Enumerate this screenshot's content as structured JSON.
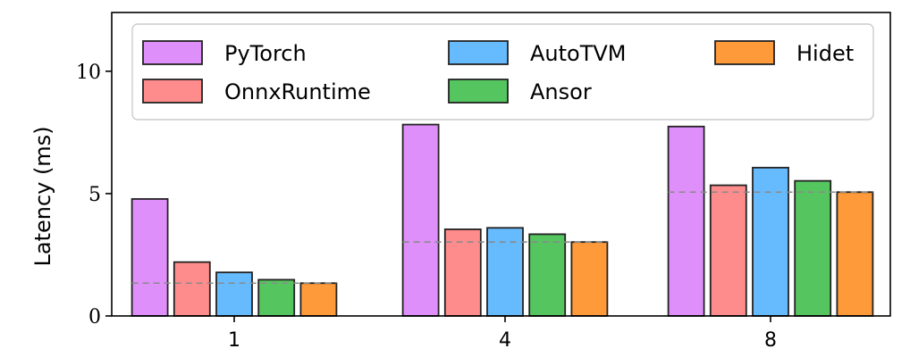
{
  "chart_data": {
    "type": "bar",
    "title": "",
    "xlabel": "",
    "ylabel": "Latency (ms)",
    "ylim": [
      0,
      12.4
    ],
    "yticks": [
      0,
      5,
      10
    ],
    "categories": [
      "1",
      "4",
      "8"
    ],
    "grid": false,
    "legend_position": "top",
    "series": [
      {
        "name": "PyTorch",
        "color": "#df8ff9",
        "values": [
          4.78,
          7.82,
          7.74
        ]
      },
      {
        "name": "OnnxRuntime",
        "color": "#ff8c8c",
        "values": [
          2.2,
          3.54,
          5.34
        ]
      },
      {
        "name": "AutoTVM",
        "color": "#66bbff",
        "values": [
          1.78,
          3.6,
          6.06
        ]
      },
      {
        "name": "Ansor",
        "color": "#55c55f",
        "values": [
          1.48,
          3.34,
          5.52
        ]
      },
      {
        "name": "Hidet",
        "color": "#ff9a3a",
        "values": [
          1.34,
          3.02,
          5.06
        ]
      }
    ],
    "reference_lines": [
      1.34,
      3.02,
      5.06
    ]
  }
}
